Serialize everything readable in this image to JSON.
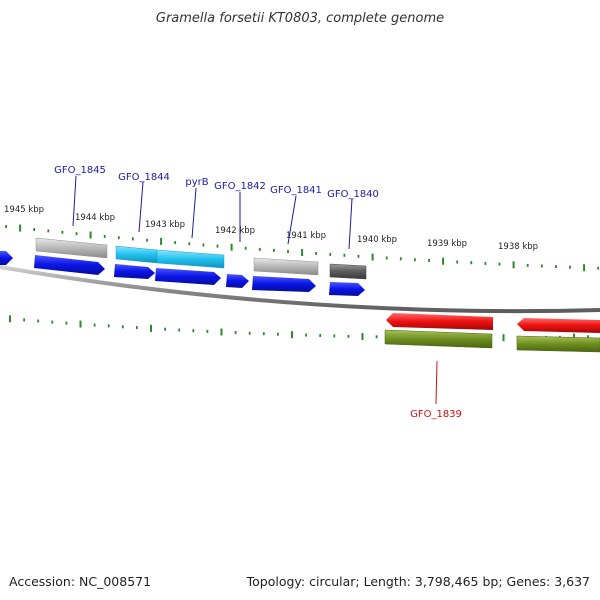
{
  "title": "Gramella forsetii KT0803, complete genome",
  "footer": {
    "accession": "Accession: NC_008571",
    "topology": "Topology: circular; Length: 3,798,465 bp; Genes: 3,637"
  },
  "kbp_labels": [
    "1945 kbp",
    "1944 kbp",
    "1943 kbp",
    "1942 kbp",
    "1941 kbp",
    "1940 kbp",
    "1939 kbp",
    "1938 kbp"
  ],
  "gene_labels": [
    {
      "text": "GFO_1845",
      "strand": "forward"
    },
    {
      "text": "GFO_1844",
      "strand": "forward"
    },
    {
      "text": "pyrB",
      "strand": "forward"
    },
    {
      "text": "GFO_1842",
      "strand": "forward"
    },
    {
      "text": "GFO_1841",
      "strand": "forward"
    },
    {
      "text": "GFO_1840",
      "strand": "forward"
    },
    {
      "text": "GFO_1839",
      "strand": "reverse"
    }
  ],
  "colors": {
    "label_forward": "#1a1aa6",
    "label_reverse": "#d01010",
    "cds": "#0a14e6",
    "gene_gray": "#b8b8b8",
    "gene_dark": "#5a5a5a",
    "gene_cyan": "#22c2ee",
    "gene_red": "#ee1010",
    "gene_olive": "#6e8e20",
    "ticks": "#2a8a2a",
    "backbone": "#8c8c8c"
  }
}
